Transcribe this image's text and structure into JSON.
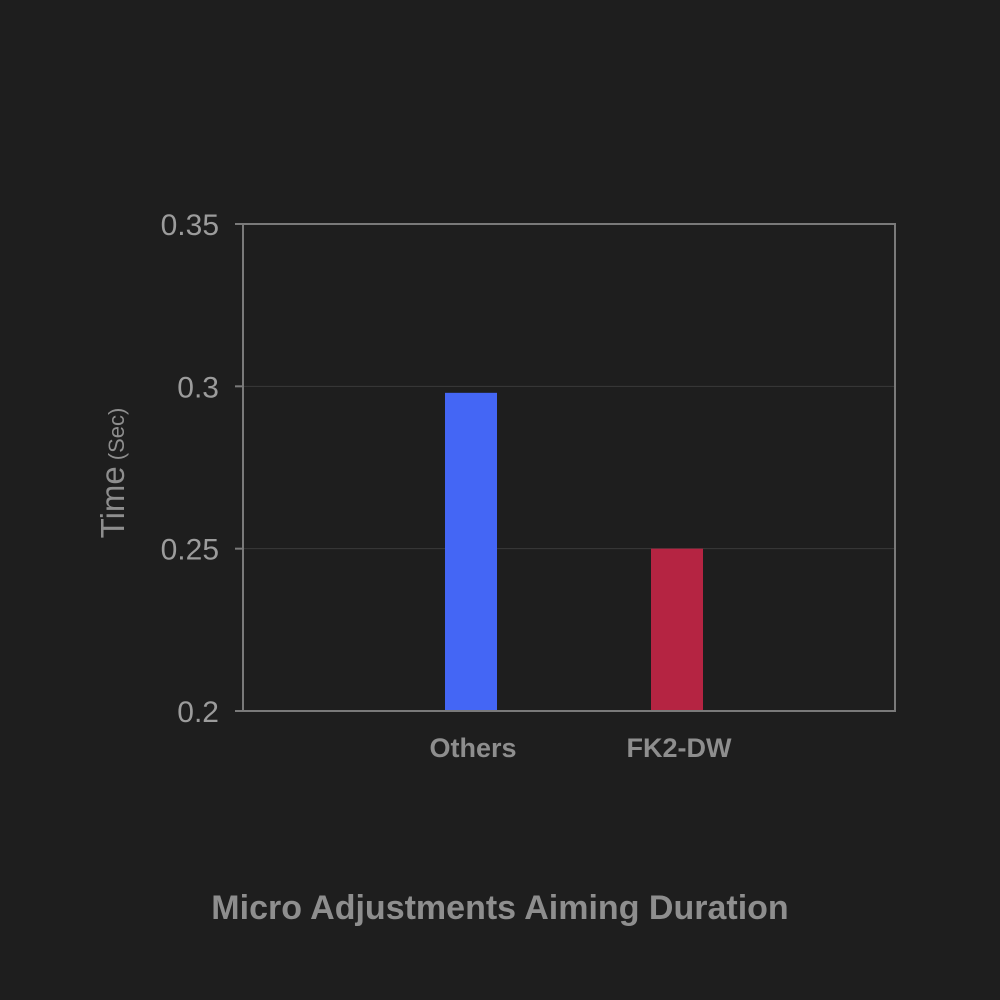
{
  "chart_data": {
    "type": "bar",
    "title": "Micro Adjustments Aiming Duration",
    "ylabel": "Time",
    "ylabel_unit": "(Sec)",
    "xlabel": "",
    "categories": [
      "Others",
      "FK2-DW"
    ],
    "values": [
      0.298,
      0.25
    ],
    "colors": [
      "#4466f5",
      "#b52442"
    ],
    "ylim": [
      0.2,
      0.35
    ],
    "yticks": [
      "0.2",
      "0.25",
      "0.3",
      "0.35"
    ],
    "grid": "horizontal",
    "legend": "none"
  },
  "colors": {
    "background": "#1e1e1e",
    "axis": "#7a7a7a",
    "grid": "#3a3a3a",
    "text": "#8e8e8e"
  }
}
